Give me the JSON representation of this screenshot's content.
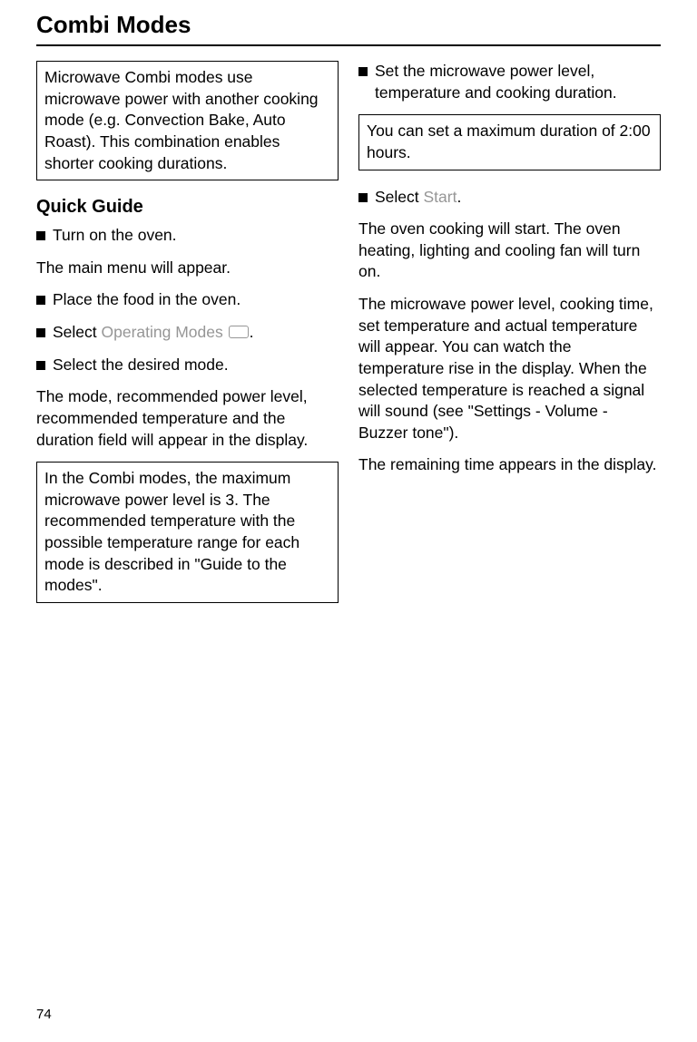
{
  "title": "Combi Modes",
  "pageNumber": "74",
  "left": {
    "introBox": "Microwave Combi modes use microwave power with another cooking mode (e.g. Convection Bake, Auto Roast). This combination enables shorter cooking durations.",
    "quickGuideHeading": "Quick Guide",
    "step1": "Turn on the oven.",
    "para1": "The main menu will appear.",
    "step2": "Place the food in the oven.",
    "step3a": "Select ",
    "step3ui": "Operating Modes",
    "step3b": ".",
    "step4": "Select the desired mode.",
    "para2": "The mode, recommended power level, recommended temperature and the duration field will appear in the display.",
    "noteBox": "In the Combi modes, the maximum microwave power level is 3. The recommended temperature with the possible temperature range for each mode is described in \"Guide to the modes\"."
  },
  "right": {
    "step1": "Set the microwave power level, temperature and cooking duration.",
    "noteBox": "You can set a maximum duration of 2:00 hours.",
    "step2a": "Select ",
    "step2ui": "Start",
    "step2b": ".",
    "para1": "The oven cooking will start. The oven heating, lighting and cooling fan will turn on.",
    "para2": "The microwave power level, cooking time, set temperature and actual temperature will appear. You can watch the temperature rise in the display. When the selected temperature is reached a signal will sound (see \"Settings - Volume - Buzzer tone\").",
    "para3": "The remaining time appears in the display."
  }
}
